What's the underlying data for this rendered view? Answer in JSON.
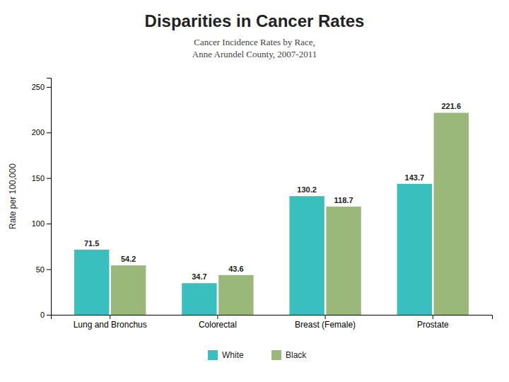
{
  "chart_data": {
    "type": "bar",
    "title": "Disparities in Cancer Rates",
    "subtitle": "Cancer Incidence Rates by Race,\nAnne Arundel County, 2007-2011",
    "categories": [
      "Lung and Bronchus",
      "Colorectal",
      "Breast (Female)",
      "Prostate"
    ],
    "series": [
      {
        "name": "White",
        "color": "#3abfbf",
        "values": [
          71.5,
          34.7,
          130.2,
          143.7
        ]
      },
      {
        "name": "Black",
        "color": "#99b87a",
        "values": [
          54.2,
          43.6,
          118.7,
          221.6
        ]
      }
    ],
    "ylabel": "Rate per 100,000",
    "ylim": [
      0,
      260
    ],
    "yticks": [
      0,
      50,
      100,
      150,
      200,
      250
    ],
    "data_labels": true,
    "legend": "bottom",
    "grid": false
  }
}
